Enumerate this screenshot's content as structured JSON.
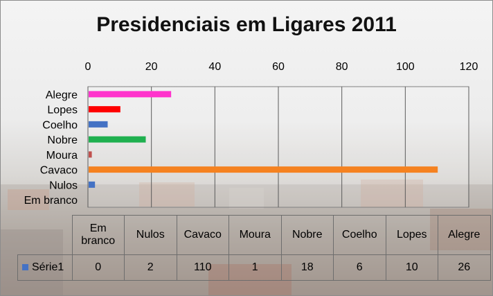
{
  "chart_data": {
    "type": "bar",
    "orientation": "horizontal",
    "title": "Presidenciais em Ligares 2011",
    "categories": [
      "Em branco",
      "Nulos",
      "Cavaco",
      "Moura",
      "Nobre",
      "Coelho",
      "Lopes",
      "Alegre"
    ],
    "series": [
      {
        "name": "Série1",
        "values": [
          0,
          2,
          110,
          1,
          18,
          6,
          10,
          26
        ]
      }
    ],
    "bar_colors": [
      "#4472c4",
      "#4472c4",
      "#f58220",
      "#c0504d",
      "#1fb04f",
      "#4472c4",
      "#ff0000",
      "#ff33cc"
    ],
    "xlim": [
      0,
      120
    ],
    "ticks": [
      0,
      20,
      40,
      60,
      80,
      100,
      120
    ],
    "tick_labels": [
      "0",
      "20",
      "40",
      "60",
      "80",
      "100",
      "120"
    ],
    "axis_position": "top",
    "grid": true,
    "data_table": true,
    "legend_key_color": "#4472c4"
  }
}
